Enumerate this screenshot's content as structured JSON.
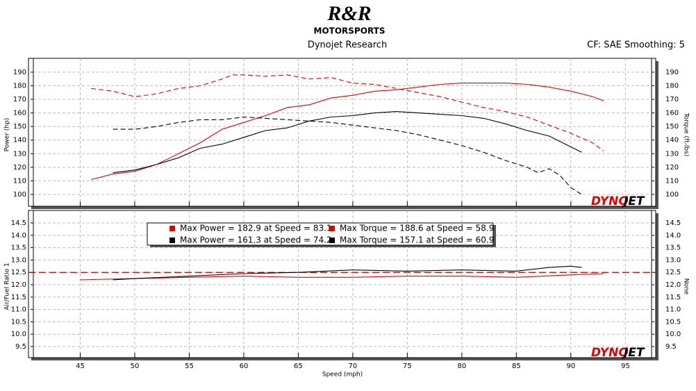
{
  "header": {
    "logo": "R&R",
    "logo_sub": "MOTORSPORTS",
    "title": "Dynojet Research",
    "info": "CF: SAE Smoothing: 5"
  },
  "watermark": [
    "DYNO",
    "JET"
  ],
  "chart_data": [
    {
      "type": "line",
      "ylabel": "Power (hp)",
      "y2label": "Torque (ft-lbs)",
      "xlim": [
        40.7,
        97.4
      ],
      "xticks": [
        45,
        50,
        55,
        60,
        65,
        70,
        75,
        80,
        85,
        90,
        95
      ],
      "ylim": [
        91.3,
        196.6
      ],
      "yticks": [
        100,
        110,
        120,
        130,
        140,
        150,
        160,
        170,
        180,
        190
      ],
      "y2lim": [
        91.3,
        196.6
      ],
      "y2ticks": [
        100,
        110,
        120,
        130,
        140,
        150,
        160,
        170,
        180,
        190
      ],
      "grid": true,
      "series": [
        {
          "color": "#e00000",
          "dash": false,
          "x": [
            46,
            48,
            50,
            52,
            54,
            56,
            58,
            60,
            62,
            64,
            66,
            68,
            70,
            72,
            74,
            76,
            78,
            80,
            82,
            84,
            86,
            88,
            90,
            92,
            93
          ],
          "values": [
            111,
            115,
            117,
            122,
            130,
            138,
            148,
            153,
            158,
            164,
            166,
            171,
            173,
            176,
            177,
            179,
            181,
            182,
            182,
            182,
            181,
            179,
            176,
            172,
            169
          ]
        },
        {
          "color": "#e00000",
          "dash": true,
          "axis": "y2",
          "x": [
            46,
            48,
            50,
            52,
            54,
            56,
            58,
            59,
            60,
            62,
            64,
            66,
            68,
            70,
            72,
            74,
            76,
            78,
            80,
            82,
            84,
            86,
            88,
            90,
            92,
            93
          ],
          "values": [
            178,
            176,
            172,
            174,
            178,
            180,
            185,
            188,
            188,
            187,
            188,
            185,
            186,
            182,
            181,
            178,
            175,
            172,
            168,
            164,
            161,
            157,
            151,
            145,
            138,
            132
          ]
        },
        {
          "color": "#000000",
          "dash": false,
          "x": [
            48,
            50,
            52,
            54,
            56,
            58,
            60,
            62,
            64,
            66,
            68,
            70,
            72,
            74,
            76,
            78,
            80,
            82,
            84,
            86,
            88,
            90,
            91
          ],
          "values": [
            116,
            118,
            122,
            127,
            134,
            137,
            142,
            147,
            149,
            154,
            157,
            158,
            160,
            161,
            160,
            159,
            158,
            156,
            152,
            147,
            143,
            135,
            131
          ]
        },
        {
          "color": "#000000",
          "dash": true,
          "axis": "y2",
          "x": [
            48,
            50,
            52,
            54,
            56,
            58,
            60,
            62,
            64,
            66,
            68,
            70,
            72,
            74,
            76,
            78,
            80,
            82,
            84,
            86,
            87,
            88,
            89,
            90,
            91
          ],
          "values": [
            148,
            148,
            150,
            153,
            155,
            155,
            157,
            156,
            155,
            154,
            153,
            151,
            149,
            147,
            144,
            140,
            136,
            131,
            125,
            120,
            116,
            119,
            114,
            105,
            100
          ]
        }
      ]
    },
    {
      "type": "line",
      "ylabel": "Air/Fuel Ratio 1",
      "y2label": "None",
      "xlabel": "Speed (mph)",
      "xlim": [
        40.7,
        97.4
      ],
      "xticks": [
        45,
        50,
        55,
        60,
        65,
        70,
        75,
        80,
        85,
        90,
        95
      ],
      "ylim": [
        9.05,
        14.81
      ],
      "yticks": [
        14.5,
        {
          "value": 14,
          "label": "14.0"
        },
        13.5,
        {
          "value": 13,
          "label": "13.0"
        },
        12.5,
        {
          "value": 12,
          "label": "12.0"
        },
        11.5,
        {
          "value": 11,
          "label": "11.0"
        },
        10.5,
        {
          "value": 10,
          "label": "10.0"
        },
        9.5
      ],
      "y2ticks": [
        14.5,
        {
          "value": 14,
          "label": "14.0"
        },
        13.5,
        {
          "value": 13,
          "label": "13.0"
        },
        12.5,
        {
          "value": 12,
          "label": "12.0"
        },
        11.5,
        {
          "value": 11,
          "label": "11.0"
        },
        10.5,
        {
          "value": 10,
          "label": "10.0"
        },
        9.5
      ],
      "grid": true,
      "reference_line": {
        "value": 12.5,
        "color": "#b00000"
      },
      "legend": [
        {
          "color": "#e00000",
          "text": "Max Power = 182.9 at Speed = 83.1"
        },
        {
          "color": "#e00000",
          "text": "Max Torque = 188.6 at Speed = 58.9"
        },
        {
          "color": "#000000",
          "text": "Max Power = 161.3 at Speed = 74.2"
        },
        {
          "color": "#000000",
          "text": "Max Torque = 157.1 at Speed = 60.9"
        }
      ],
      "series": [
        {
          "color": "#e00000",
          "dash": false,
          "x": [
            45,
            50,
            55,
            60,
            65,
            70,
            75,
            80,
            85,
            90,
            93
          ],
          "values": [
            12.2,
            12.25,
            12.3,
            12.35,
            12.3,
            12.3,
            12.35,
            12.35,
            12.3,
            12.4,
            12.45
          ]
        },
        {
          "color": "#000000",
          "dash": false,
          "x": [
            48,
            50,
            55,
            60,
            65,
            70,
            75,
            80,
            85,
            88,
            90,
            91
          ],
          "values": [
            12.2,
            12.25,
            12.35,
            12.45,
            12.5,
            12.6,
            12.55,
            12.6,
            12.55,
            12.7,
            12.75,
            12.7
          ]
        }
      ]
    }
  ]
}
